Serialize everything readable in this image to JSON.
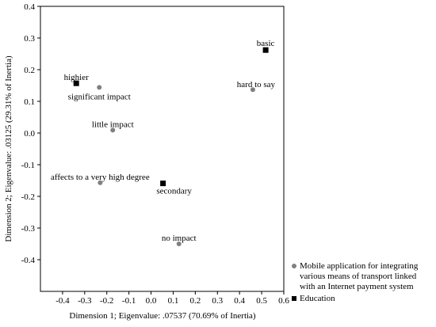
{
  "chart_data": {
    "type": "scatter",
    "xlabel": "Dimension 1; Eigenvalue: .07537 (70.69% of Inertia)",
    "ylabel": "Dimension 2; Eigenvalue: .03125 (29.31% of Inertia)",
    "xlim": [
      -0.5,
      0.6
    ],
    "ylim": [
      -0.5,
      0.4
    ],
    "xticks": [
      -0.4,
      -0.3,
      -0.2,
      -0.1,
      {
        "value": 0,
        "label": "0.0"
      },
      0.1,
      0.2,
      0.3,
      0.4,
      0.5,
      0.6
    ],
    "yticks": [
      0.4,
      0.3,
      0.2,
      0.1,
      {
        "value": 0,
        "label": "0.0"
      },
      -0.1,
      -0.2,
      -0.3,
      -0.4
    ],
    "series": [
      {
        "name": "Mobile application for integrating various means of transport linked with an Internet payment system",
        "color": "#808080",
        "marker": "circle",
        "labels": [
          "significant impact",
          "hard to say",
          "little impact",
          "affects to a very high degree",
          "no impact"
        ],
        "x": [
          -0.234,
          0.46,
          -0.173,
          -0.23,
          0.126
        ],
        "values": [
          0.144,
          0.137,
          0.009,
          -0.157,
          -0.35
        ]
      },
      {
        "name": "Education",
        "color": "#000000",
        "marker": "square",
        "labels": [
          "highier",
          "basic",
          "secondary"
        ],
        "x": [
          -0.338,
          0.518,
          0.054
        ],
        "values": [
          0.157,
          0.262,
          -0.159
        ]
      }
    ]
  }
}
